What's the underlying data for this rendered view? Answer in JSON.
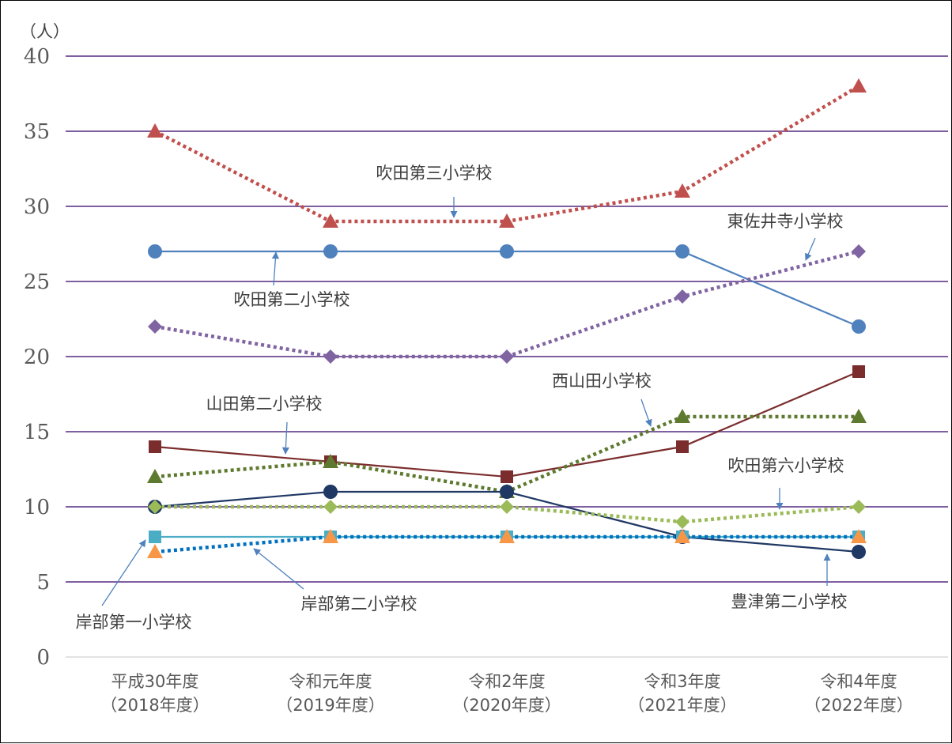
{
  "chart_data": {
    "type": "line",
    "unit_label": "（人）",
    "ylim": [
      0,
      40
    ],
    "yticks": [
      "0",
      "5",
      "10",
      "15",
      "20",
      "25",
      "30",
      "35",
      "40"
    ],
    "grid": true,
    "categories": [
      [
        "平成30年度",
        "（2018年度）"
      ],
      [
        "令和元年度",
        "（2019年度）"
      ],
      [
        "令和2年度",
        "（2020年度）"
      ],
      [
        "令和3年度",
        "（2021年度）"
      ],
      [
        "令和4年度",
        "（2022年度）"
      ]
    ],
    "series": [
      {
        "name": "吹田第三小学校",
        "values": [
          35,
          29,
          29,
          31,
          38
        ],
        "color": "#C0504D",
        "marker": "triangle",
        "dash": "dotted"
      },
      {
        "name": "吹田第二小学校",
        "values": [
          27,
          27,
          27,
          27,
          22
        ],
        "color": "#4F81BD",
        "marker": "circle",
        "dash": "solid"
      },
      {
        "name": "東佐井寺小学校",
        "values": [
          22,
          20,
          20,
          24,
          27
        ],
        "color": "#8064A2",
        "marker": "diamond",
        "dash": "dotted"
      },
      {
        "name": "山田第二小学校",
        "values": [
          14,
          13,
          12,
          14,
          19
        ],
        "color": "#7B2C2C",
        "marker": "square",
        "dash": "solid"
      },
      {
        "name": "西山田小学校",
        "values": [
          12,
          13,
          11,
          16,
          16
        ],
        "color": "#5E7A2F",
        "marker": "triangle",
        "dash": "dotted"
      },
      {
        "name": "豊津第二小学校",
        "values": [
          10,
          11,
          11,
          8,
          7
        ],
        "color": "#1F3864",
        "marker": "circle",
        "dash": "solid"
      },
      {
        "name": "吹田第六小学校",
        "values": [
          10,
          10,
          10,
          9,
          10
        ],
        "color": "#9BBB59",
        "marker": "diamond",
        "dash": "dotted"
      },
      {
        "name": "岸部第一小学校",
        "values": [
          8,
          8,
          8,
          8,
          8
        ],
        "color": "#4BACC6",
        "marker": "square",
        "dash": "solid"
      },
      {
        "name": "岸部第二小学校",
        "values": [
          7,
          8,
          8,
          8,
          8
        ],
        "color": "#F79646",
        "marker": "triangle",
        "dash": "dotted",
        "line_color": "#0070C0"
      }
    ]
  }
}
